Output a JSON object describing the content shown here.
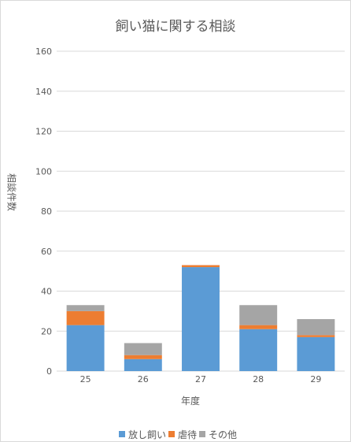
{
  "chart_data": {
    "type": "bar",
    "stacked": true,
    "title": "飼い猫に関する相談",
    "xlabel": "年度",
    "ylabel": "相談件数",
    "categories": [
      "25",
      "26",
      "27",
      "28",
      "29"
    ],
    "series": [
      {
        "name": "放し飼い",
        "color": "#5b9bd5",
        "values": [
          23,
          6,
          52,
          21,
          17
        ]
      },
      {
        "name": "虐待",
        "color": "#ed7d31",
        "values": [
          7,
          2,
          1,
          2,
          1
        ]
      },
      {
        "name": "その他",
        "color": "#a5a5a5",
        "values": [
          3,
          6,
          0,
          10,
          8
        ]
      }
    ],
    "ylim": [
      0,
      160
    ],
    "yticks": [
      0,
      20,
      40,
      60,
      80,
      100,
      120,
      140,
      160
    ],
    "grid": true,
    "legend": "bottom"
  }
}
